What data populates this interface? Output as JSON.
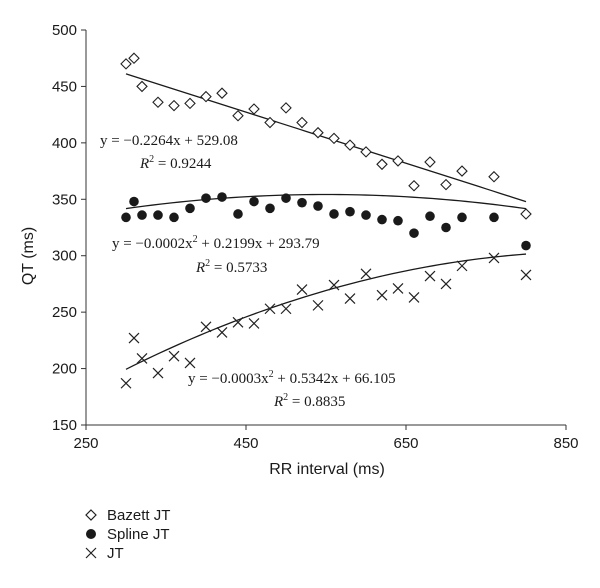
{
  "chart_data": {
    "type": "scatter",
    "xlabel": "RR interval (ms)",
    "ylabel": "QT (ms)",
    "xlim": [
      250,
      850
    ],
    "ylim": [
      150,
      500
    ],
    "xticks": [
      250,
      450,
      650,
      850
    ],
    "yticks": [
      150,
      200,
      250,
      300,
      350,
      400,
      450,
      500
    ],
    "grid": false,
    "legend_position": "bottom-left",
    "series": [
      {
        "name": "Bazett JT",
        "marker": "diamond",
        "x": [
          300,
          310,
          320,
          340,
          360,
          380,
          400,
          420,
          440,
          460,
          480,
          500,
          520,
          540,
          560,
          580,
          600,
          620,
          640,
          660,
          680,
          700,
          720,
          760,
          800
        ],
        "y": [
          470,
          475,
          450,
          436,
          433,
          435,
          441,
          444,
          424,
          430,
          418,
          431,
          418,
          409,
          404,
          398,
          392,
          381,
          384,
          362,
          383,
          363,
          375,
          370,
          337
        ],
        "fit": {
          "kind": "linear",
          "coef": [
            -0.2264,
            529.08
          ],
          "x_range": [
            300,
            800
          ],
          "equation_main": "y = −0.2264x + 529.08",
          "r2_value": " = 0.9244"
        }
      },
      {
        "name": "Spline JT",
        "marker": "circle",
        "x": [
          300,
          310,
          320,
          340,
          360,
          380,
          400,
          420,
          440,
          460,
          480,
          500,
          520,
          540,
          560,
          580,
          600,
          620,
          640,
          660,
          680,
          700,
          720,
          760,
          800
        ],
        "y": [
          334,
          348,
          336,
          336,
          334,
          342,
          351,
          352,
          337,
          348,
          342,
          351,
          347,
          344,
          337,
          339,
          336,
          332,
          331,
          320,
          335,
          325,
          334,
          334,
          309
        ],
        "fit": {
          "kind": "quadratic",
          "coef": [
            -0.0002,
            0.2199,
            293.79
          ],
          "x_range": [
            300,
            800
          ],
          "equation_main": "y = −0.0002x",
          "equation_rest": " + 0.2199x + 293.79",
          "r2_value": " = 0.5733"
        }
      },
      {
        "name": "JT",
        "marker": "x",
        "x": [
          300,
          310,
          320,
          340,
          360,
          380,
          400,
          420,
          440,
          460,
          480,
          500,
          520,
          540,
          560,
          580,
          600,
          620,
          640,
          660,
          680,
          700,
          720,
          760,
          800
        ],
        "y": [
          187,
          227,
          209,
          196,
          211,
          205,
          237,
          232,
          241,
          240,
          253,
          253,
          270,
          256,
          274,
          262,
          284,
          265,
          271,
          263,
          282,
          275,
          291,
          298,
          283
        ],
        "fit": {
          "kind": "quadratic",
          "coef": [
            -0.0003,
            0.5342,
            66.105
          ],
          "x_range": [
            300,
            800
          ],
          "equation_main": "y = −0.0003x",
          "equation_rest": " + 0.5342x + 66.105",
          "r2_value": " = 0.8835"
        }
      }
    ]
  }
}
